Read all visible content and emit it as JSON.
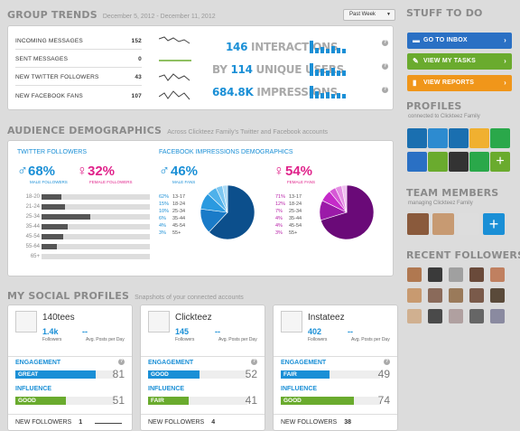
{
  "group_trends": {
    "title": "GROUP TRENDS",
    "date_range": "December 5, 2012 - December 11, 2012",
    "period": "Past Week",
    "rows": [
      {
        "label": "INCOMING MESSAGES",
        "value": "152"
      },
      {
        "label": "SENT MESSAGES",
        "value": "0"
      },
      {
        "label": "NEW TWITTER FOLLOWERS",
        "value": "43"
      },
      {
        "label": "NEW FACEBOOK FANS",
        "value": "107"
      }
    ],
    "stats": [
      {
        "value": "146",
        "label": "INTERACTIONS",
        "prefix": ""
      },
      {
        "value": "114",
        "label": "UNIQUE USERS",
        "prefix": "BY"
      },
      {
        "value": "684.8K",
        "label": "IMPRESSIONS",
        "prefix": ""
      }
    ]
  },
  "stuff_to_do": {
    "title": "STUFF TO DO",
    "buttons": [
      {
        "label": "GO TO INBOX",
        "color": "#2a70c4"
      },
      {
        "label": "VIEW MY TASKS",
        "color": "#6aab2e"
      },
      {
        "label": "VIEW REPORTS",
        "color": "#f0961a"
      }
    ]
  },
  "profiles": {
    "title": "PROFILES",
    "sub": "connected to Clickteez Family"
  },
  "team": {
    "title": "TEAM MEMBERS",
    "sub": "managing Clickteez Family"
  },
  "recent": {
    "title": "RECENT FOLLOWERS"
  },
  "demographics": {
    "title": "AUDIENCE DEMOGRAPHICS",
    "sub": "Across Clickteez Family's Twitter and Facebook accounts",
    "twitter": {
      "title": "TWITTER FOLLOWERS",
      "male_pct": "68%",
      "male_label": "MALE FOLLOWERS",
      "female_pct": "32%",
      "female_label": "FEMALE FOLLOWERS",
      "ages": [
        {
          "label": "18-20",
          "fill": 0.18
        },
        {
          "label": "21-24",
          "fill": 0.22
        },
        {
          "label": "25-34",
          "fill": 0.45
        },
        {
          "label": "35-44",
          "fill": 0.24
        },
        {
          "label": "45-54",
          "fill": 0.2
        },
        {
          "label": "55-64",
          "fill": 0.14
        },
        {
          "label": "65+",
          "fill": 0.0
        }
      ]
    },
    "facebook": {
      "title": "FACEBOOK IMPRESSIONS DEMOGRAPHICS",
      "male_pct": "46%",
      "male_label": "MALE FANS",
      "female_pct": "54%",
      "female_label": "FEMALE FANS",
      "male_ages": [
        [
          "62%",
          "13-17"
        ],
        [
          "15%",
          "18-24"
        ],
        [
          "10%",
          "25-34"
        ],
        [
          "6%",
          "35-44"
        ],
        [
          "4%",
          "45-54"
        ],
        [
          "3%",
          "55+"
        ]
      ],
      "female_ages": [
        [
          "71%",
          "13-17"
        ],
        [
          "12%",
          "18-24"
        ],
        [
          "7%",
          "25-34"
        ],
        [
          "4%",
          "35-44"
        ],
        [
          "4%",
          "45-54"
        ],
        [
          "3%",
          "55+"
        ]
      ]
    }
  },
  "social": {
    "title": "MY SOCIAL PROFILES",
    "sub": "Snapshots of your connected accounts",
    "cards": [
      {
        "name": "140tees",
        "followers": "1.4k",
        "followers_label": "Followers",
        "avg": "--",
        "avg_label": "Avg. Posts per Day",
        "engagement_label": "ENGAGEMENT",
        "engagement": "GREAT",
        "engagement_num": "81",
        "engagement_fill": 0.81,
        "influence_label": "INFLUENCE",
        "influence": "GOOD",
        "influence_num": "51",
        "influence_fill": 0.51,
        "new_label": "NEW FOLLOWERS",
        "new": "1"
      },
      {
        "name": "Clickteez",
        "followers": "145",
        "followers_label": "Followers",
        "avg": "--",
        "avg_label": "Avg. Posts per Day",
        "engagement_label": "ENGAGEMENT",
        "engagement": "GOOD",
        "engagement_num": "52",
        "engagement_fill": 0.52,
        "influence_label": "INFLUENCE",
        "influence": "FAIR",
        "influence_num": "41",
        "influence_fill": 0.41,
        "new_label": "NEW FOLLOWERS",
        "new": "4"
      },
      {
        "name": "Instateez",
        "followers": "402",
        "followers_label": "Followers",
        "avg": "--",
        "avg_label": "Avg. Posts per Day",
        "engagement_label": "ENGAGEMENT",
        "engagement": "FAIR",
        "engagement_num": "49",
        "engagement_fill": 0.49,
        "influence_label": "INFLUENCE",
        "influence": "GOOD",
        "influence_num": "74",
        "influence_fill": 0.74,
        "new_label": "NEW FOLLOWERS",
        "new": "38"
      }
    ]
  }
}
